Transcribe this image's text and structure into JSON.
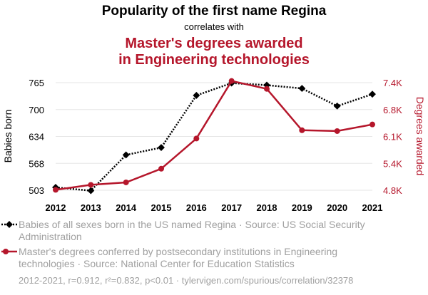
{
  "header": {
    "title": "Popularity of the first name Regina",
    "subtitle": "correlates with",
    "second_title_line1": "Master's degrees awarded",
    "second_title_line2": "in Engineering technologies"
  },
  "chart_data": {
    "type": "line",
    "x": [
      "2012",
      "2013",
      "2014",
      "2015",
      "2016",
      "2017",
      "2018",
      "2019",
      "2020",
      "2021"
    ],
    "y_left": {
      "label": "Babies born",
      "ticks": [
        "503",
        "568",
        "634",
        "700",
        "765"
      ],
      "range": [
        503,
        765
      ]
    },
    "y_right": {
      "label": "Degrees awarded",
      "ticks": [
        "4.8K",
        "5.4K",
        "6.1K",
        "6.8K",
        "7.4K"
      ],
      "range": [
        4800,
        7400
      ]
    },
    "series": [
      {
        "name": "Babies of all sexes born in the US named Regina",
        "axis": "left",
        "color": "#000000",
        "style": "dotted",
        "marker": "diamond",
        "values": [
          510,
          502,
          589,
          607,
          734,
          764,
          759,
          751,
          708,
          737
        ]
      },
      {
        "name": "Master's degrees conferred by postsecondary institutions in Engineering technologies",
        "axis": "right",
        "color": "#b5162b",
        "style": "solid",
        "marker": "circle",
        "values": [
          4810,
          4930,
          4990,
          5320,
          6050,
          7440,
          7250,
          6250,
          6230,
          6390
        ]
      }
    ]
  },
  "legend": {
    "series1_line1": "Babies of all sexes born in the US named Regina · Source: US Social Security",
    "series1_line2": "Administration",
    "series2_line1": "Master's degrees conferred by postsecondary institutions in Engineering",
    "series2_line2": "technologies · Source: National Center for Education Statistics"
  },
  "footer": {
    "stats": "2012-2021, r=0.912, r²=0.832, p<0.01 · tylervigen.com/spurious/correlation/32378"
  },
  "colors": {
    "accent": "#b5162b",
    "primary": "#000000",
    "muted": "#a0a0a0",
    "grid": "#e6e6e6"
  }
}
